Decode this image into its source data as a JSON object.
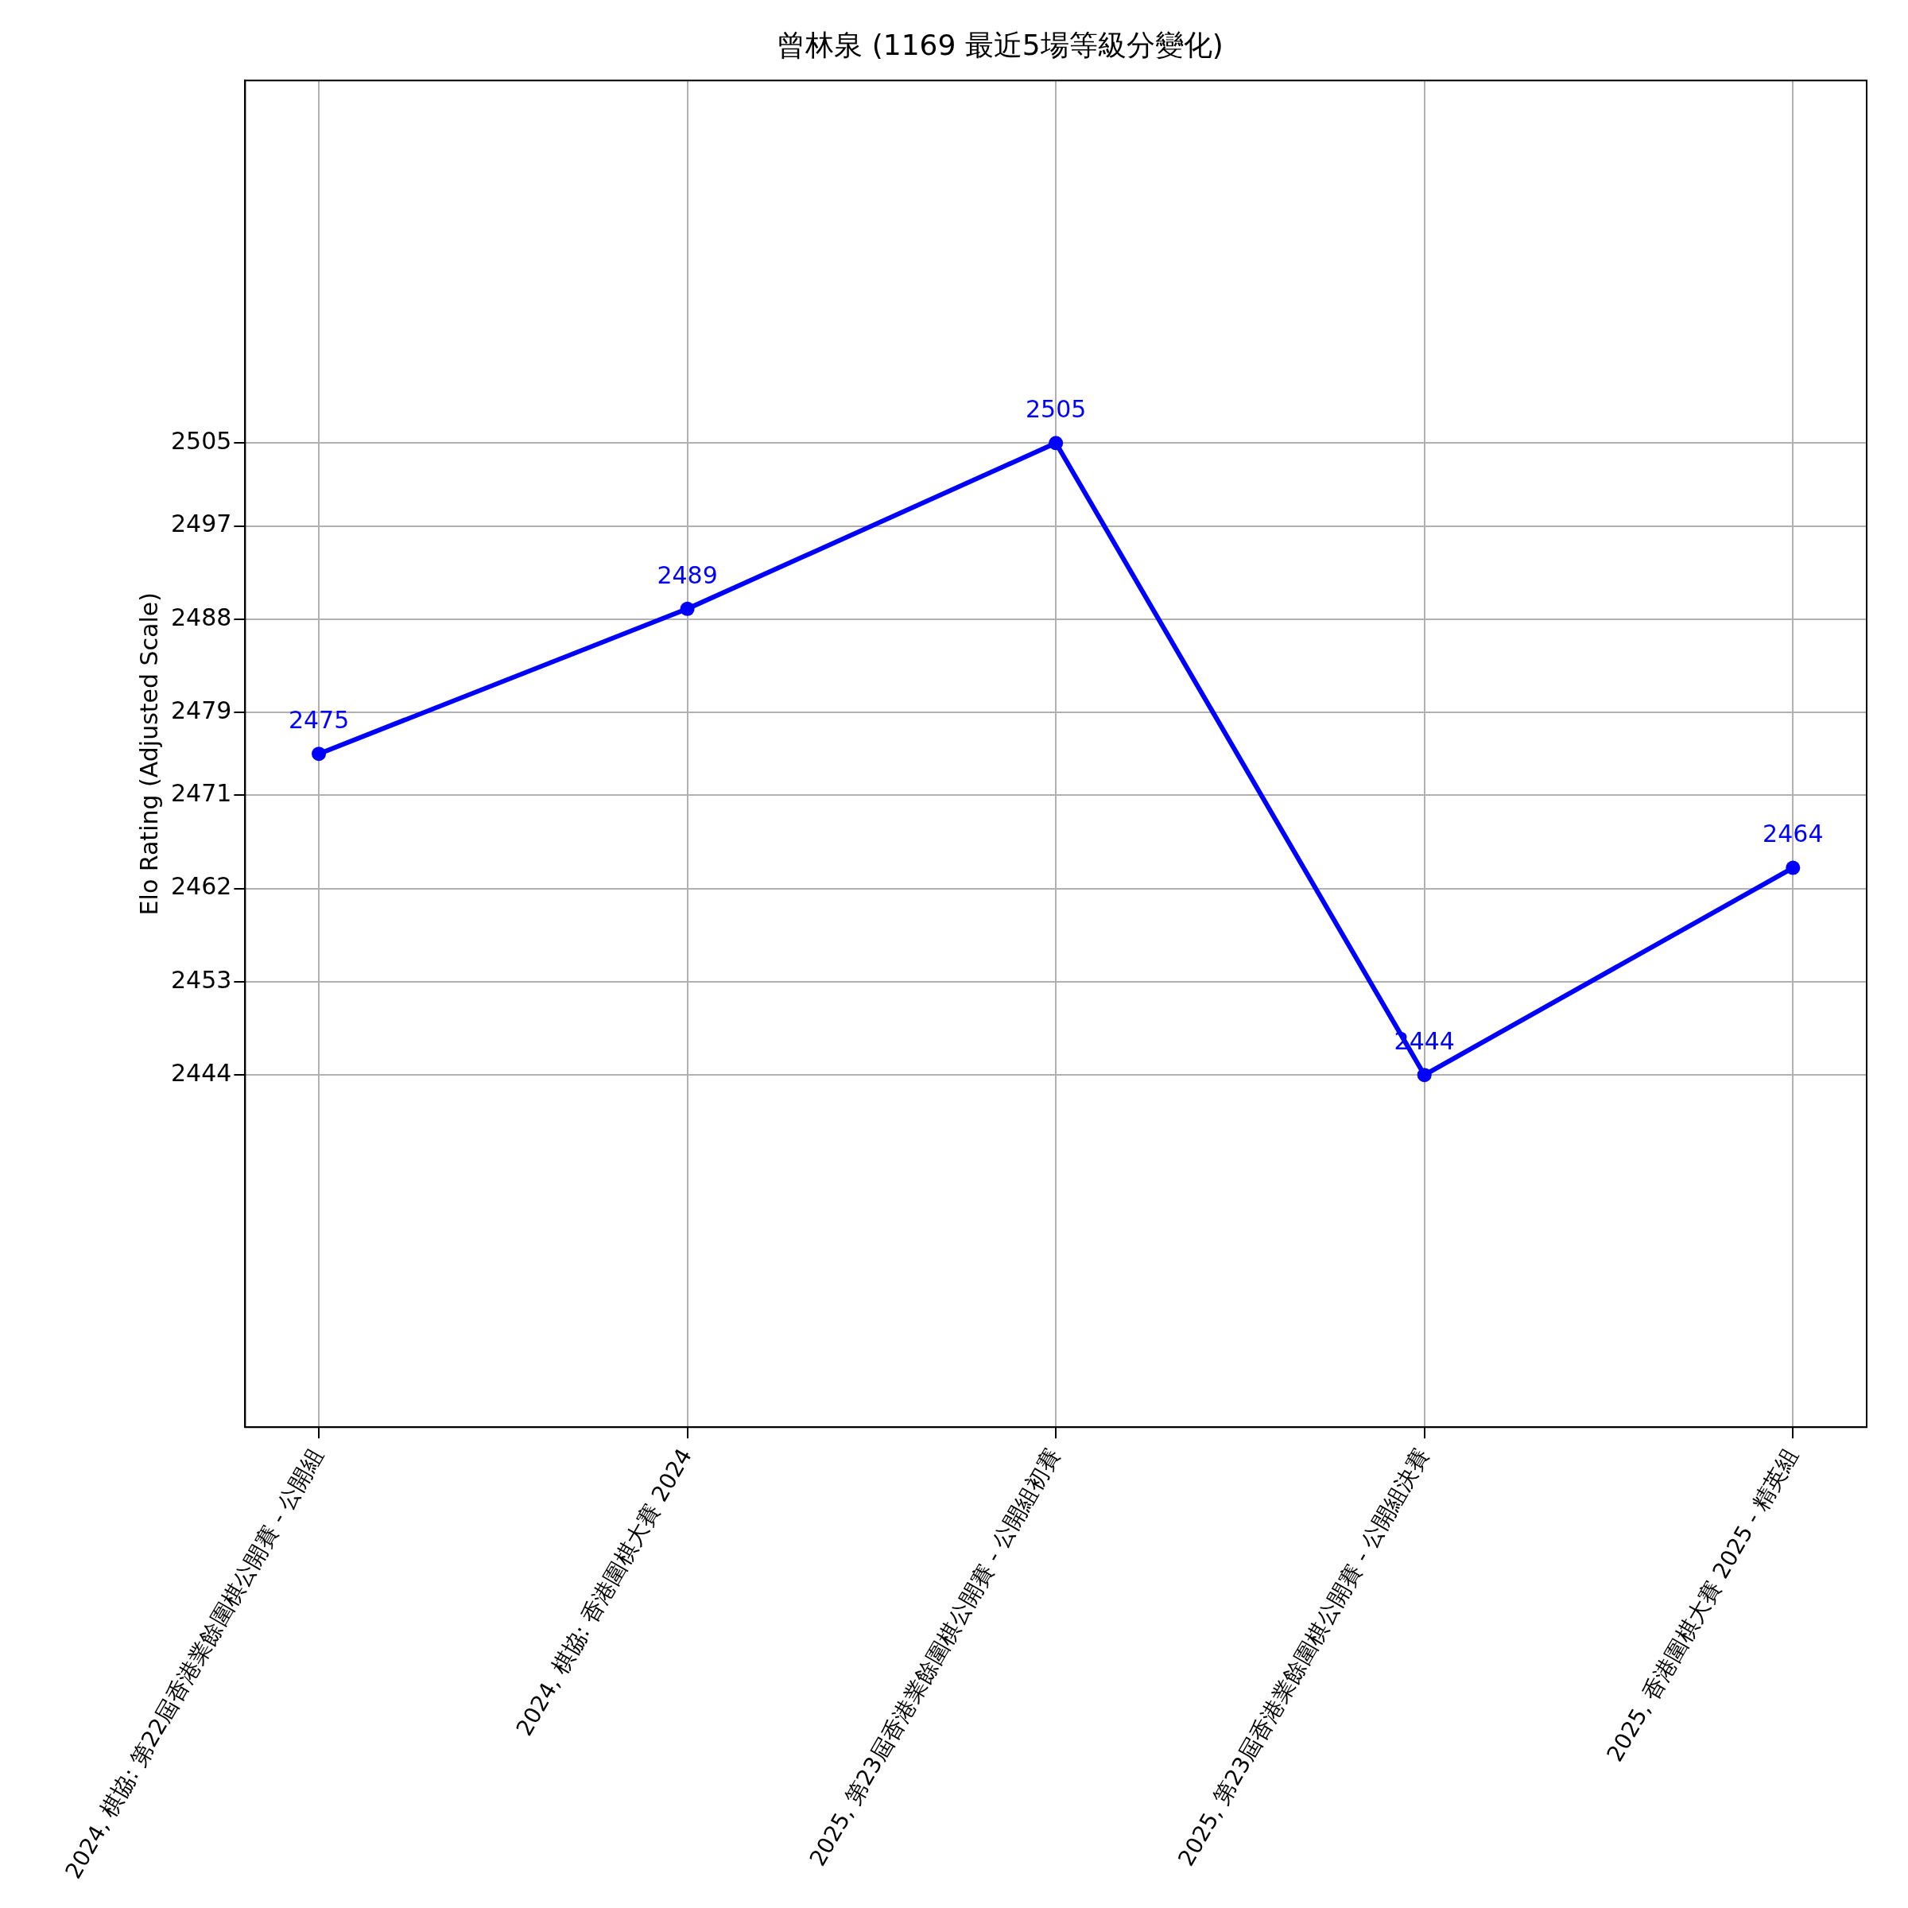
{
  "chart_data": {
    "type": "line",
    "title": "曾林泉 (1169 最近5場等級分變化)",
    "ylabel": "Elo Rating (Adjusted Scale)",
    "categories": [
      "2024, 棋協: 第22屆香港業餘圍棋公開賽 - 公開組",
      "2024, 棋協: 香港圍棋大賽 2024",
      "2025, 第23屆香港業餘圍棋公開賽 - 公開組初賽",
      "2025, 第23屆香港業餘圍棋公開賽 - 公開組決賽",
      "2025, 香港圍棋大賽 2025 - 精英組"
    ],
    "series": [
      {
        "color": "#0000ff",
        "values": [
          2475,
          2489,
          2505,
          2444,
          2464
        ]
      }
    ],
    "ylim": [
      2410,
      2540
    ],
    "yticks": [
      2444,
      2453,
      2462,
      2471,
      2479,
      2488,
      2497,
      2505
    ],
    "grid": true,
    "marker": "circle",
    "line_style": "solid",
    "data_labels": true
  }
}
